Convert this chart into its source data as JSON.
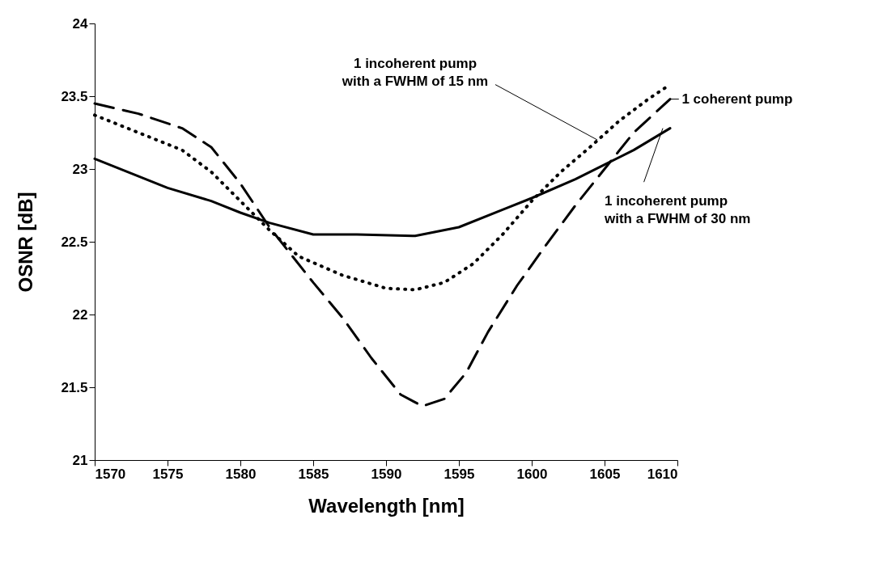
{
  "chart_data": {
    "type": "line",
    "xlabel": "Wavelength [nm]",
    "ylabel": "OSNR [dB]",
    "xlim": [
      1570,
      1610
    ],
    "xticks": [
      1570,
      1575,
      1580,
      1585,
      1590,
      1595,
      1600,
      1605,
      1610
    ],
    "ylim": [
      21,
      24
    ],
    "yticks": [
      21,
      21.5,
      22,
      22.5,
      23,
      23.5,
      24
    ],
    "grid": false,
    "marker": "none",
    "series": [
      {
        "color": "#000000",
        "line_style": "solid",
        "x": [
          1570,
          1575,
          1578,
          1580,
          1582,
          1585,
          1588,
          1592,
          1595,
          1598,
          1600,
          1603,
          1605,
          1607,
          1609.5
        ],
        "values": [
          23.07,
          22.87,
          22.78,
          22.7,
          22.63,
          22.55,
          22.55,
          22.54,
          22.6,
          22.72,
          22.8,
          22.93,
          23.03,
          23.13,
          23.28
        ]
      },
      {
        "color": "#000000",
        "line_style": "dotted",
        "x": [
          1570,
          1573,
          1576,
          1578,
          1580,
          1582,
          1584,
          1587,
          1590,
          1592,
          1594,
          1596,
          1598,
          1600,
          1602,
          1604,
          1606,
          1608,
          1609.5
        ],
        "values": [
          23.37,
          23.25,
          23.13,
          22.98,
          22.78,
          22.58,
          22.4,
          22.27,
          22.18,
          22.17,
          22.22,
          22.35,
          22.55,
          22.78,
          22.98,
          23.15,
          23.33,
          23.48,
          23.58
        ]
      },
      {
        "color": "#000000",
        "line_style": "dashed",
        "x": [
          1570,
          1573,
          1576,
          1578,
          1580,
          1582,
          1585,
          1587,
          1589,
          1591,
          1592.5,
          1594,
          1595.5,
          1597,
          1599,
          1601,
          1603,
          1605,
          1607,
          1609.5
        ],
        "values": [
          23.45,
          23.38,
          23.28,
          23.15,
          22.9,
          22.6,
          22.22,
          21.98,
          21.7,
          21.45,
          21.37,
          21.42,
          21.6,
          21.88,
          22.2,
          22.48,
          22.75,
          23.0,
          23.25,
          23.48
        ]
      }
    ],
    "annotations": [
      {
        "text": "1 incoherent pump\nwith a FWHM of 15 nm",
        "x": 1604.5,
        "y": 23.2
      },
      {
        "text": "1 coherent pump",
        "x": 1609.5,
        "y": 23.48
      },
      {
        "text": "1 incoherent pump\nwith a FWHM of 30 nm",
        "x": 1609,
        "y": 23.28
      }
    ]
  }
}
